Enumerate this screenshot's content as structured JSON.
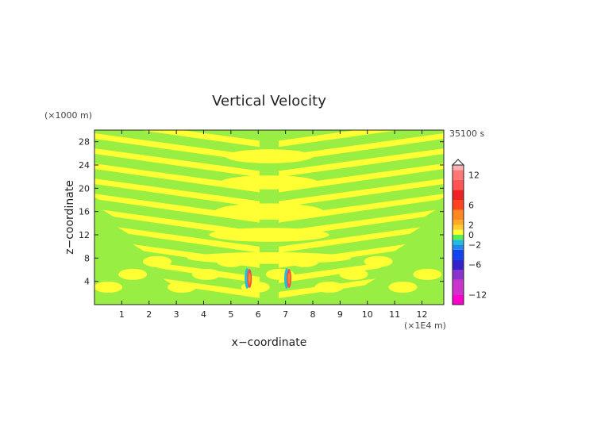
{
  "chart_data": {
    "type": "heatmap",
    "title": "Vertical Velocity",
    "time_label": "35100 s",
    "xlabel": "x−coordinate",
    "ylabel": "z−coordinate",
    "x_unit": "(×1E4 m)",
    "y_unit": "(×1000 m)",
    "xlim": [
      0,
      12.8
    ],
    "ylim": [
      0,
      30
    ],
    "xticks": [
      "1",
      "2",
      "3",
      "4",
      "5",
      "6",
      "7",
      "8",
      "9",
      "10",
      "11",
      "12"
    ],
    "yticks": [
      "4",
      "8",
      "12",
      "16",
      "20",
      "24",
      "28"
    ],
    "colorbar": {
      "ticks": [
        "12",
        "6",
        "2",
        "0",
        "−2",
        "−6",
        "−12"
      ],
      "tick_values": [
        12,
        6,
        2,
        0,
        -2,
        -6,
        -12
      ],
      "range": [
        -14,
        14
      ],
      "colors": {
        "pos_high": "#f7b3b3",
        "pos_mid": "#f25050",
        "pos_low": "#ff8c1a",
        "near_zero_pos": "#ffff33",
        "near_zero_neg": "#99ee44",
        "neg_low": "#1fbfe0",
        "neg_mid": "#2030d0",
        "neg_high": "#ee3399"
      }
    },
    "field_description_values": {
      "background_value": -0.5,
      "band_value": 0.5,
      "plumes": [
        {
          "x": 5.65,
          "z": 4.5,
          "core": 8
        },
        {
          "x": 7.1,
          "z": 4.5,
          "core": 8
        }
      ]
    }
  }
}
